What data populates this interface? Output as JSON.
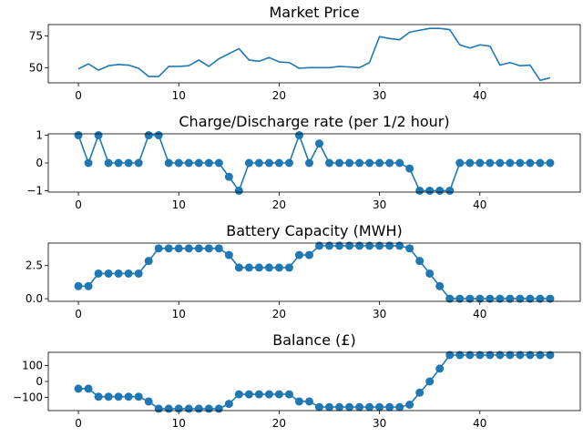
{
  "chart_data": [
    {
      "type": "line",
      "title": "Market Price",
      "xlabel": "",
      "ylabel": "",
      "xlim": [
        -3,
        50
      ],
      "ylim": [
        38,
        84
      ],
      "xticks": [
        0,
        10,
        20,
        30,
        40
      ],
      "yticks": [
        50,
        75
      ],
      "ytick_labels": [
        "50",
        "75"
      ],
      "markers": false,
      "color": "#1f77b4",
      "series": [
        {
          "x": [
            0,
            1,
            2,
            3,
            4,
            5,
            6,
            7,
            8,
            9,
            10,
            11,
            12,
            13,
            14,
            15,
            16,
            17,
            18,
            19,
            20,
            21,
            22,
            23,
            24,
            25,
            26,
            27,
            28,
            29,
            30,
            31,
            32,
            33,
            34,
            35,
            36,
            37,
            38,
            39,
            40,
            41,
            42,
            43,
            44,
            45,
            46,
            47
          ],
          "values": [
            49,
            53,
            48,
            51.5,
            52.5,
            52,
            49.5,
            43,
            43,
            51,
            51,
            51.5,
            56,
            51,
            57,
            61,
            65,
            56,
            55,
            58,
            54.5,
            54,
            49.5,
            50,
            50,
            50,
            51,
            50.5,
            50,
            54,
            74.5,
            73,
            72,
            78,
            79.5,
            81,
            81,
            80,
            68,
            65.5,
            68,
            67,
            52,
            54,
            51.5,
            52,
            40,
            42
          ]
        }
      ]
    },
    {
      "type": "line",
      "title": "Charge/Discharge rate (per 1/2 hour)",
      "xlabel": "",
      "ylabel": "",
      "xlim": [
        -3,
        50
      ],
      "ylim": [
        -1.05,
        1.05
      ],
      "xticks": [
        0,
        10,
        20,
        30,
        40
      ],
      "yticks": [
        -1,
        0,
        1
      ],
      "ytick_labels": [
        "−1",
        "0",
        "1"
      ],
      "markers": true,
      "color": "#1f77b4",
      "series": [
        {
          "x": [
            0,
            1,
            2,
            3,
            4,
            5,
            6,
            7,
            8,
            9,
            10,
            11,
            12,
            13,
            14,
            15,
            16,
            17,
            18,
            19,
            20,
            21,
            22,
            23,
            24,
            25,
            26,
            27,
            28,
            29,
            30,
            31,
            32,
            33,
            34,
            35,
            36,
            37,
            38,
            39,
            40,
            41,
            42,
            43,
            44,
            45,
            46,
            47
          ],
          "values": [
            1,
            0,
            1,
            0,
            0,
            0,
            0,
            1,
            1,
            0,
            0,
            0,
            0,
            0,
            0,
            -0.5,
            -1,
            0,
            0,
            0,
            0,
            0,
            1,
            0,
            0.7,
            0,
            0,
            0,
            0,
            0,
            0,
            0,
            0,
            -0.2,
            -1,
            -1,
            -1,
            -1,
            0,
            0,
            0,
            0,
            0,
            0,
            0,
            0,
            0,
            0
          ]
        }
      ]
    },
    {
      "type": "line",
      "title": "Battery Capacity (MWH)",
      "xlabel": "",
      "ylabel": "",
      "xlim": [
        -3,
        50
      ],
      "ylim": [
        -0.2,
        4.2
      ],
      "xticks": [
        0,
        10,
        20,
        30,
        40
      ],
      "yticks": [
        0,
        2.5
      ],
      "ytick_labels": [
        "0.0",
        "2.5"
      ],
      "markers": true,
      "color": "#1f77b4",
      "series": [
        {
          "x": [
            0,
            1,
            2,
            3,
            4,
            5,
            6,
            7,
            8,
            9,
            10,
            11,
            12,
            13,
            14,
            15,
            16,
            17,
            18,
            19,
            20,
            21,
            22,
            23,
            24,
            25,
            26,
            27,
            28,
            29,
            30,
            31,
            32,
            33,
            34,
            35,
            36,
            37,
            38,
            39,
            40,
            41,
            42,
            43,
            44,
            45,
            46,
            47
          ],
          "values": [
            0.95,
            0.95,
            1.9,
            1.9,
            1.9,
            1.9,
            1.9,
            2.85,
            3.8,
            3.8,
            3.8,
            3.8,
            3.8,
            3.8,
            3.8,
            3.3,
            2.35,
            2.35,
            2.35,
            2.35,
            2.35,
            2.35,
            3.3,
            3.3,
            4.0,
            4.0,
            4.0,
            4.0,
            4.0,
            4.0,
            4.0,
            4.0,
            4.0,
            3.8,
            2.85,
            1.9,
            0.95,
            0,
            0,
            0,
            0,
            0,
            0,
            0,
            0,
            0,
            0,
            0
          ]
        }
      ]
    },
    {
      "type": "line",
      "title": "Balance (£)",
      "xlabel": "",
      "ylabel": "",
      "xlim": [
        -3,
        50
      ],
      "ylim": [
        -182,
        182
      ],
      "xticks": [
        0,
        10,
        20,
        30,
        40
      ],
      "yticks": [
        -100,
        0,
        100
      ],
      "ytick_labels": [
        "−100",
        "0",
        "100"
      ],
      "markers": true,
      "color": "#1f77b4",
      "series": [
        {
          "x": [
            0,
            1,
            2,
            3,
            4,
            5,
            6,
            7,
            8,
            9,
            10,
            11,
            12,
            13,
            14,
            15,
            16,
            17,
            18,
            19,
            20,
            21,
            22,
            23,
            24,
            25,
            26,
            27,
            28,
            29,
            30,
            31,
            32,
            33,
            34,
            35,
            36,
            37,
            38,
            39,
            40,
            41,
            42,
            43,
            44,
            45,
            46,
            47
          ],
          "values": [
            -45,
            -45,
            -95,
            -95,
            -95,
            -95,
            -95,
            -125,
            -170,
            -170,
            -170,
            -170,
            -170,
            -170,
            -170,
            -140,
            -80,
            -80,
            -80,
            -80,
            -80,
            -80,
            -125,
            -125,
            -160,
            -160,
            -160,
            -160,
            -160,
            -160,
            -160,
            -160,
            -160,
            -145,
            -70,
            0,
            80,
            165,
            165,
            165,
            165,
            165,
            165,
            165,
            165,
            165,
            165,
            165
          ]
        }
      ]
    }
  ]
}
